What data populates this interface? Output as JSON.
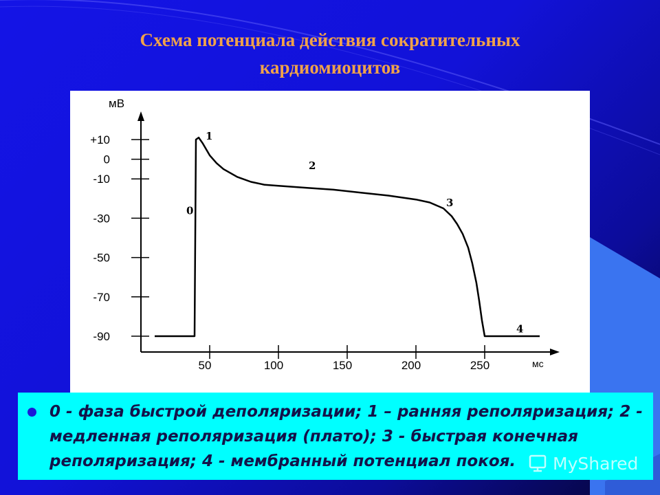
{
  "slide": {
    "title_line1": "Схема потенциала действия сократительных",
    "title_line2": "кардиомиоцитов",
    "caption": "0 - фаза быстрой деполяризации; 1 – ранняя реполяризация; 2 - медленная реполяризация (плато); 3 - быстрая конечная реполяризация; 4 - мембранный потенциал покоя.",
    "watermark": "MyShared"
  },
  "colors": {
    "background": "#1414e6",
    "title": "#f0a24a",
    "caption_box": "#00ffff",
    "caption_text": "#13134a"
  },
  "icons": {
    "watermark": "myshared-logo-icon",
    "bullet": "bullet-dot-icon"
  },
  "chart_data": {
    "type": "line",
    "ylabel": "мВ",
    "xlabel": "мс",
    "y_ticks": [
      {
        "value": 10,
        "label": "+10"
      },
      {
        "value": 0,
        "label": "0"
      },
      {
        "value": -10,
        "label": "-10"
      },
      {
        "value": -30,
        "label": "-30"
      },
      {
        "value": -50,
        "label": "-50"
      },
      {
        "value": -70,
        "label": "-70"
      },
      {
        "value": -90,
        "label": "-90"
      }
    ],
    "x_ticks": [
      {
        "value": 50,
        "label": "50"
      },
      {
        "value": 100,
        "label": "100"
      },
      {
        "value": 150,
        "label": "150"
      },
      {
        "value": 200,
        "label": "200"
      },
      {
        "value": 250,
        "label": "250"
      }
    ],
    "x_range": [
      0,
      300
    ],
    "y_range": [
      -90,
      22
    ],
    "series": [
      {
        "x": [
          10,
          39,
          40,
          42,
          45,
          50,
          55,
          60,
          70,
          80,
          90,
          100,
          120,
          140,
          160,
          180,
          200,
          210,
          220,
          226,
          230,
          234,
          238,
          241,
          244,
          246,
          248,
          250,
          255,
          290
        ],
        "y": [
          -90,
          -90,
          10,
          11,
          8,
          2,
          -2,
          -5,
          -9,
          -11.5,
          -13,
          -13.5,
          -14.5,
          -15.5,
          -17,
          -18.5,
          -20.5,
          -22,
          -25,
          -29,
          -33,
          -38,
          -45,
          -53,
          -63,
          -72,
          -82,
          -90,
          -90,
          -90
        ]
      }
    ],
    "annotations": [
      {
        "text": "0",
        "x": 33,
        "y": -28
      },
      {
        "text": "1",
        "x": 47,
        "y": 10
      },
      {
        "text": "2",
        "x": 122,
        "y": -5
      },
      {
        "text": "3",
        "x": 222,
        "y": -24
      },
      {
        "text": "4",
        "x": 273,
        "y": -88
      }
    ],
    "grid": false
  }
}
